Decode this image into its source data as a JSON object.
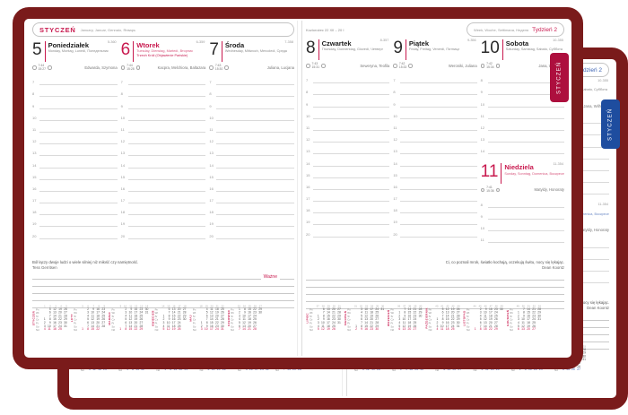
{
  "cover": {
    "color": "#7a1b1b"
  },
  "accents": {
    "front": {
      "accent": "#c8194e",
      "tab": "#ad0f3e"
    },
    "back": {
      "accent": "#3a62b2",
      "tab": "#1e4d9f"
    }
  },
  "tab_label": "STYCZEŃ",
  "left_header": {
    "month": "STYCZEŃ",
    "langs": "January, Januar, Gennaio, Январь"
  },
  "right_header": {
    "zodiac": "Koziorożec 22 XII – 20 I",
    "week_langs": "Week, Woche, Settimana, Неделя",
    "week_label": "Tydzień 2"
  },
  "days": [
    {
      "num": "5",
      "doy": "5-360",
      "name": "Poniedziałek",
      "langs": "Monday, Montag, Lunedì, Понедельник",
      "holiday": null,
      "red": false,
      "sunrise": "7:44",
      "sunset": "15:27",
      "namedays": "Edwarda, Szymona",
      "hours": [
        "7",
        "8",
        "9",
        "10",
        "11",
        "12",
        "13",
        "14",
        "15",
        "16",
        "17",
        "18",
        "19",
        "20"
      ]
    },
    {
      "num": "6",
      "doy": "6-359",
      "name": "Wtorek",
      "langs": "Tuesday, Dienstag, Martedì, Вторник",
      "holiday": "Trzech Króli (Objawienie Pańskie)",
      "red": true,
      "sunrise": "7:44",
      "sunset": "15:28",
      "namedays": "Kacpra, Melchiora, Baltazara",
      "hours": [
        "7",
        "8",
        "9",
        "10",
        "11",
        "12",
        "13",
        "14",
        "15",
        "16",
        "17",
        "18",
        "19",
        "20"
      ]
    },
    {
      "num": "7",
      "doy": "7-358",
      "name": "Środa",
      "langs": "Wednesday, Mittwoch, Mercoledì, Среда",
      "holiday": null,
      "red": false,
      "sunrise": "7:43",
      "sunset": "15:30",
      "namedays": "Juliana, Lucjana",
      "hours": [
        "7",
        "8",
        "9",
        "10",
        "11",
        "12",
        "13",
        "14",
        "15",
        "16",
        "17",
        "18",
        "19",
        "20"
      ]
    },
    {
      "num": "8",
      "doy": "8-357",
      "name": "Czwartek",
      "langs": "Thursday, Donnerstag, Giovedì, Четверг",
      "holiday": null,
      "red": false,
      "sunrise": "7:43",
      "sunset": "15:31",
      "namedays": "Seweryna, Teofila",
      "hours": [
        "7",
        "8",
        "9",
        "10",
        "11",
        "12",
        "13",
        "14",
        "15",
        "16",
        "17",
        "18",
        "19",
        "20"
      ]
    },
    {
      "num": "9",
      "doy": "9-356",
      "name": "Piątek",
      "langs": "Friday, Freitag, Venerdì, Пятница",
      "holiday": null,
      "red": false,
      "sunrise": "7:42",
      "sunset": "15:33",
      "namedays": "Weroniki, Juliana",
      "hours": [
        "7",
        "8",
        "9",
        "10",
        "11",
        "12",
        "13",
        "14",
        "15",
        "16",
        "17",
        "18",
        "19",
        "20"
      ]
    },
    {
      "num": "10",
      "doy": "10-355",
      "name": "Sobota",
      "langs": "Saturday, Samstag, Sabato, Суббота",
      "holiday": null,
      "red": false,
      "sunrise": "7:42",
      "sunset": "15:34",
      "namedays": "Jana, Wilhelma",
      "hours": [
        "8",
        "9",
        "10",
        "11",
        "12",
        "13",
        "14"
      ]
    },
    {
      "num": "11",
      "doy": "11-354",
      "name": "Niedziela",
      "langs": "Sunday, Sonntag, Domenica, Воскресенье",
      "holiday": null,
      "red": true,
      "sunrise": "7:41",
      "sunset": "15:36",
      "namedays": "Matyldy, Honoraty",
      "hours": [
        "8",
        "9",
        "10",
        "11"
      ]
    }
  ],
  "quotes": {
    "left": {
      "text": "Ból łączy dwoje ludzi o wiele silniej niż miłość czy namiętność.",
      "author": "Tess Gerritsen"
    },
    "right": {
      "text": "Ci, co poznali mrok, światło kochają, oczekują świtu, nocy się lękając.",
      "author": "Dean Koontz"
    }
  },
  "wazne_label": "Ważne",
  "mini_calendars": {
    "day_labels": [
      "Pn",
      "Wt",
      "Śr",
      "Cz",
      "Pt",
      "So",
      "Nd"
    ],
    "left": [
      {
        "name": "STYCZEŃ",
        "weeks": [
          "1",
          "2",
          "3",
          "4",
          "5"
        ],
        "rows": [
          [
            "",
            "5",
            "12",
            "19",
            "26"
          ],
          [
            "",
            "6",
            "13",
            "20",
            "27"
          ],
          [
            "",
            "7",
            "14",
            "21",
            "28"
          ],
          [
            "1",
            "8",
            "15",
            "22",
            "29"
          ],
          [
            "2",
            "9",
            "16",
            "23",
            "30"
          ],
          [
            "3",
            "10",
            "17",
            "24",
            "31"
          ],
          [
            "4",
            "11",
            "18",
            "25",
            ""
          ]
        ]
      },
      {
        "name": "LUTY",
        "weeks": [
          "5",
          "6",
          "7",
          "8",
          "9"
        ],
        "rows": [
          [
            "",
            "2",
            "9",
            "16",
            "23"
          ],
          [
            "",
            "3",
            "10",
            "17",
            "24"
          ],
          [
            "",
            "4",
            "11",
            "18",
            "25"
          ],
          [
            "",
            "5",
            "12",
            "19",
            "26"
          ],
          [
            "",
            "6",
            "13",
            "20",
            "27"
          ],
          [
            "",
            "7",
            "14",
            "21",
            "28"
          ],
          [
            "1",
            "8",
            "15",
            "22",
            ""
          ]
        ]
      },
      {
        "name": "MARZEC",
        "weeks": [
          "9",
          "10",
          "11",
          "12",
          "13",
          "14"
        ],
        "rows": [
          [
            "",
            "2",
            "9",
            "16",
            "23",
            "30"
          ],
          [
            "",
            "3",
            "10",
            "17",
            "24",
            "31"
          ],
          [
            "",
            "4",
            "11",
            "18",
            "25",
            ""
          ],
          [
            "",
            "5",
            "12",
            "19",
            "26",
            ""
          ],
          [
            "",
            "6",
            "13",
            "20",
            "27",
            ""
          ],
          [
            "",
            "7",
            "14",
            "21",
            "28",
            ""
          ],
          [
            "1",
            "8",
            "15",
            "22",
            "29",
            ""
          ]
        ]
      },
      {
        "name": "KWIECIEŃ",
        "weeks": [
          "14",
          "15",
          "16",
          "17",
          "18"
        ],
        "rows": [
          [
            "",
            "6",
            "13",
            "20",
            "27"
          ],
          [
            "",
            "7",
            "14",
            "21",
            "28"
          ],
          [
            "1",
            "8",
            "15",
            "22",
            "29"
          ],
          [
            "2",
            "9",
            "16",
            "23",
            "30"
          ],
          [
            "3",
            "10",
            "17",
            "24",
            ""
          ],
          [
            "4",
            "11",
            "18",
            "25",
            ""
          ],
          [
            "5",
            "12",
            "19",
            "26",
            ""
          ]
        ]
      },
      {
        "name": "MAJ",
        "weeks": [
          "18",
          "19",
          "20",
          "21",
          "22"
        ],
        "rows": [
          [
            "",
            "4",
            "11",
            "18",
            "25"
          ],
          [
            "",
            "5",
            "12",
            "19",
            "26"
          ],
          [
            "",
            "6",
            "13",
            "20",
            "27"
          ],
          [
            "",
            "7",
            "14",
            "21",
            "28"
          ],
          [
            "1",
            "8",
            "15",
            "22",
            "29"
          ],
          [
            "2",
            "9",
            "16",
            "23",
            "30"
          ],
          [
            "3",
            "10",
            "17",
            "24",
            "31"
          ]
        ]
      },
      {
        "name": "CZERWIEC",
        "weeks": [
          "23",
          "24",
          "25",
          "26",
          "27"
        ],
        "rows": [
          [
            "1",
            "8",
            "15",
            "22",
            "29"
          ],
          [
            "2",
            "9",
            "16",
            "23",
            "30"
          ],
          [
            "3",
            "10",
            "17",
            "24",
            ""
          ],
          [
            "4",
            "11",
            "18",
            "25",
            ""
          ],
          [
            "5",
            "12",
            "19",
            "26",
            ""
          ],
          [
            "6",
            "13",
            "20",
            "27",
            ""
          ],
          [
            "7",
            "14",
            "21",
            "28",
            ""
          ]
        ]
      }
    ],
    "right": [
      {
        "name": "LIPIEC",
        "weeks": [
          "27",
          "28",
          "29",
          "30",
          "31"
        ],
        "rows": [
          [
            "",
            "6",
            "13",
            "20",
            "27"
          ],
          [
            "",
            "7",
            "14",
            "21",
            "28"
          ],
          [
            "1",
            "8",
            "15",
            "22",
            "29"
          ],
          [
            "2",
            "9",
            "16",
            "23",
            "30"
          ],
          [
            "3",
            "10",
            "17",
            "24",
            "31"
          ],
          [
            "4",
            "11",
            "18",
            "25",
            ""
          ],
          [
            "5",
            "12",
            "19",
            "26",
            ""
          ]
        ]
      },
      {
        "name": "SIERPIEŃ",
        "weeks": [
          "31",
          "32",
          "33",
          "34",
          "35",
          "36"
        ],
        "rows": [
          [
            "",
            "3",
            "10",
            "17",
            "24",
            "31"
          ],
          [
            "",
            "4",
            "11",
            "18",
            "25",
            ""
          ],
          [
            "",
            "5",
            "12",
            "19",
            "26",
            ""
          ],
          [
            "",
            "6",
            "13",
            "20",
            "27",
            ""
          ],
          [
            "",
            "7",
            "14",
            "21",
            "28",
            ""
          ],
          [
            "1",
            "8",
            "15",
            "22",
            "29",
            ""
          ],
          [
            "2",
            "9",
            "16",
            "23",
            "30",
            ""
          ]
        ]
      },
      {
        "name": "WRZESIEŃ",
        "weeks": [
          "36",
          "37",
          "38",
          "39",
          "40"
        ],
        "rows": [
          [
            "",
            "7",
            "14",
            "21",
            "28"
          ],
          [
            "1",
            "8",
            "15",
            "22",
            "29"
          ],
          [
            "2",
            "9",
            "16",
            "23",
            "30"
          ],
          [
            "3",
            "10",
            "17",
            "24",
            ""
          ],
          [
            "4",
            "11",
            "18",
            "25",
            ""
          ],
          [
            "5",
            "12",
            "19",
            "26",
            ""
          ],
          [
            "6",
            "13",
            "20",
            "27",
            ""
          ]
        ]
      },
      {
        "name": "PAŹDZIERNIK",
        "weeks": [
          "40",
          "41",
          "42",
          "43",
          "44"
        ],
        "rows": [
          [
            "",
            "5",
            "12",
            "19",
            "26"
          ],
          [
            "",
            "6",
            "13",
            "20",
            "27"
          ],
          [
            "",
            "7",
            "14",
            "21",
            "28"
          ],
          [
            "1",
            "8",
            "15",
            "22",
            "29"
          ],
          [
            "2",
            "9",
            "16",
            "23",
            "30"
          ],
          [
            "3",
            "10",
            "17",
            "24",
            "31"
          ],
          [
            "4",
            "11",
            "18",
            "25",
            ""
          ]
        ]
      },
      {
        "name": "LISTOPAD",
        "weeks": [
          "44",
          "45",
          "46",
          "47",
          "48",
          "49"
        ],
        "rows": [
          [
            "",
            "2",
            "9",
            "16",
            "23",
            "30"
          ],
          [
            "",
            "3",
            "10",
            "17",
            "24",
            ""
          ],
          [
            "",
            "4",
            "11",
            "18",
            "25",
            ""
          ],
          [
            "",
            "5",
            "12",
            "19",
            "26",
            ""
          ],
          [
            "",
            "6",
            "13",
            "20",
            "27",
            ""
          ],
          [
            "",
            "7",
            "14",
            "21",
            "28",
            ""
          ],
          [
            "1",
            "8",
            "15",
            "22",
            "29",
            ""
          ]
        ]
      },
      {
        "name": "GRUDZIEŃ",
        "weeks": [
          "49",
          "50",
          "51",
          "52",
          "53"
        ],
        "rows": [
          [
            "",
            "7",
            "14",
            "21",
            "28"
          ],
          [
            "1",
            "8",
            "15",
            "22",
            "29"
          ],
          [
            "2",
            "9",
            "16",
            "23",
            "30"
          ],
          [
            "3",
            "10",
            "17",
            "24",
            "31"
          ],
          [
            "4",
            "11",
            "18",
            "25",
            ""
          ],
          [
            "5",
            "12",
            "19",
            "26",
            ""
          ],
          [
            "6",
            "13",
            "20",
            "27",
            ""
          ]
        ]
      }
    ]
  }
}
